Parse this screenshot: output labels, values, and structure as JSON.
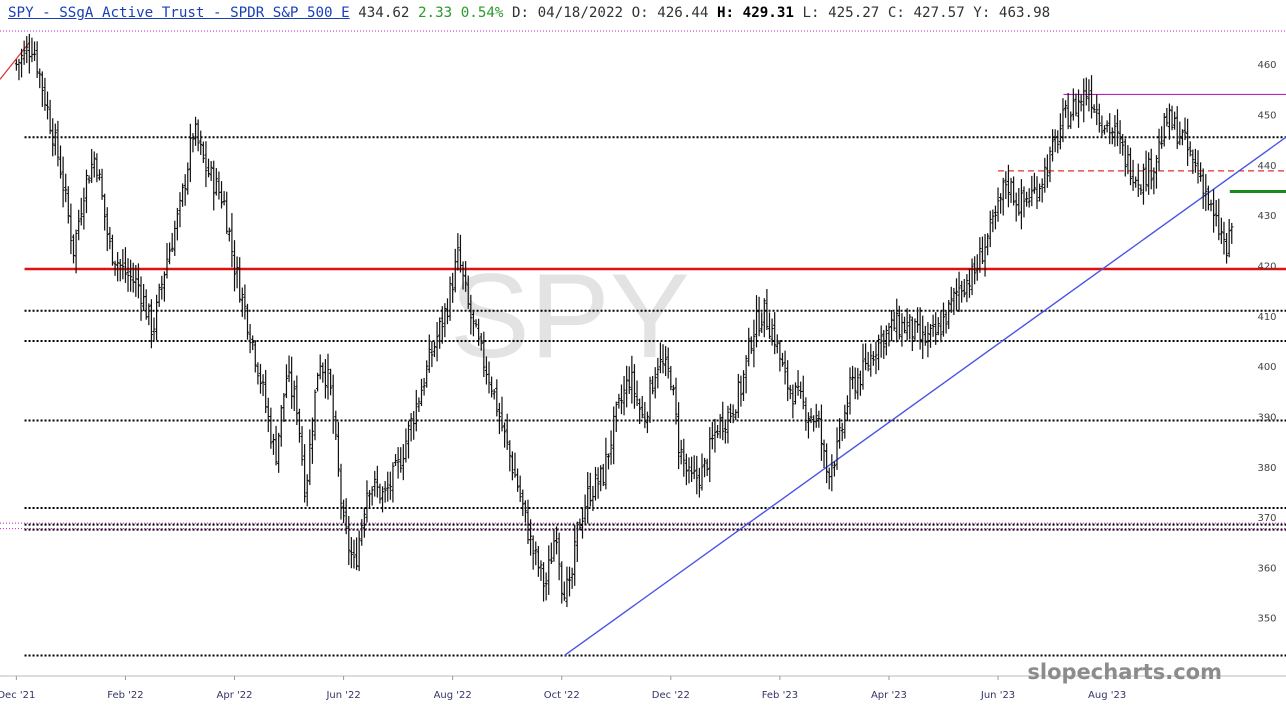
{
  "header": {
    "ticker_title": "SPY - SSgA Active Trust - SPDR S&P 500 E",
    "last": "434.62",
    "change": "2.33",
    "change_pct": "0.54%",
    "date_label": "D: 04/18/2022",
    "open_label": "O: 426.44",
    "high_label": "H:",
    "high_value": "429.31",
    "low_label": "L: 425.27",
    "close_label": "C: 427.57",
    "y_label": "Y: 463.98"
  },
  "watermark_symbol": "SPY",
  "site_credit": "slopecharts.com",
  "chart_data": {
    "type": "ohlc-bar",
    "ylim": [
      342,
      467
    ],
    "y_ticks": [
      "460",
      "450",
      "440",
      "430",
      "420",
      "410",
      "400",
      "390",
      "380",
      "370",
      "360",
      "350"
    ],
    "x_tick_labels": [
      "Dec '21",
      "Feb '22",
      "Apr '22",
      "Jun '22",
      "Aug '22",
      "Oct '22",
      "Dec '22",
      "Feb '23",
      "Apr '23",
      "Jun '23",
      "Aug '23"
    ],
    "x_tick_months": [
      0,
      2,
      4,
      6,
      8,
      10,
      12,
      14,
      16,
      18,
      20
    ],
    "x_range_months": [
      -0.3,
      22.4
    ],
    "price_path": [
      [
        0.0,
        460
      ],
      [
        0.3,
        464
      ],
      [
        0.55,
        452
      ],
      [
        0.8,
        440
      ],
      [
        1.05,
        423
      ],
      [
        1.25,
        436
      ],
      [
        1.45,
        442
      ],
      [
        1.7,
        424
      ],
      [
        1.95,
        419
      ],
      [
        2.25,
        416
      ],
      [
        2.5,
        407
      ],
      [
        2.75,
        421
      ],
      [
        3.0,
        431
      ],
      [
        3.25,
        447
      ],
      [
        3.45,
        440
      ],
      [
        3.8,
        433
      ],
      [
        4.0,
        420
      ],
      [
        4.2,
        411
      ],
      [
        4.45,
        399
      ],
      [
        4.75,
        382
      ],
      [
        4.95,
        398
      ],
      [
        5.15,
        392
      ],
      [
        5.3,
        375
      ],
      [
        5.55,
        402
      ],
      [
        5.75,
        396
      ],
      [
        6.0,
        368
      ],
      [
        6.2,
        360
      ],
      [
        6.45,
        377
      ],
      [
        6.75,
        374
      ],
      [
        7.0,
        380
      ],
      [
        7.3,
        391
      ],
      [
        7.6,
        402
      ],
      [
        7.9,
        412
      ],
      [
        8.1,
        422
      ],
      [
        8.3,
        411
      ],
      [
        8.5,
        403
      ],
      [
        8.7,
        397
      ],
      [
        8.95,
        386
      ],
      [
        9.2,
        376
      ],
      [
        9.45,
        364
      ],
      [
        9.7,
        356
      ],
      [
        9.9,
        368
      ],
      [
        10.0,
        357
      ],
      [
        10.15,
        355
      ],
      [
        10.3,
        368
      ],
      [
        10.5,
        375
      ],
      [
        10.75,
        378
      ],
      [
        11.0,
        390
      ],
      [
        11.25,
        398
      ],
      [
        11.5,
        389
      ],
      [
        11.75,
        401
      ],
      [
        12.0,
        398
      ],
      [
        12.15,
        384
      ],
      [
        12.35,
        377
      ],
      [
        12.6,
        379
      ],
      [
        12.85,
        388
      ],
      [
        13.1,
        391
      ],
      [
        13.3,
        396
      ],
      [
        13.5,
        407
      ],
      [
        13.7,
        411
      ],
      [
        13.9,
        406
      ],
      [
        14.1,
        397
      ],
      [
        14.3,
        394
      ],
      [
        14.5,
        391
      ],
      [
        14.7,
        389
      ],
      [
        14.85,
        379
      ],
      [
        15.05,
        383
      ],
      [
        15.3,
        396
      ],
      [
        15.55,
        399
      ],
      [
        15.8,
        405
      ],
      [
        16.1,
        408
      ],
      [
        16.35,
        408
      ],
      [
        16.6,
        405
      ],
      [
        16.85,
        406
      ],
      [
        17.1,
        411
      ],
      [
        17.3,
        416
      ],
      [
        17.55,
        418
      ],
      [
        17.75,
        424
      ],
      [
        17.95,
        429
      ],
      [
        18.15,
        437
      ],
      [
        18.4,
        432
      ],
      [
        18.7,
        435
      ],
      [
        18.95,
        441
      ],
      [
        19.2,
        449
      ],
      [
        19.45,
        452
      ],
      [
        19.65,
        455
      ],
      [
        19.9,
        449
      ],
      [
        20.15,
        446
      ],
      [
        20.35,
        441
      ],
      [
        20.6,
        437
      ],
      [
        20.85,
        440
      ],
      [
        21.1,
        449
      ],
      [
        21.35,
        446
      ],
      [
        21.55,
        441
      ],
      [
        21.75,
        437
      ],
      [
        21.95,
        429
      ],
      [
        22.1,
        426
      ],
      [
        22.2,
        422
      ],
      [
        22.3,
        429
      ]
    ],
    "horizontal_levels": [
      {
        "value": 445.5,
        "style": "dotted-black"
      },
      {
        "value": 419.3,
        "style": "solid-red"
      },
      {
        "value": 411.0,
        "style": "dotted-black"
      },
      {
        "value": 405.0,
        "style": "dotted-black"
      },
      {
        "value": 389.2,
        "style": "dotted-black"
      },
      {
        "value": 371.8,
        "style": "dotted-black"
      },
      {
        "value": 368.5,
        "style": "dotted-black"
      },
      {
        "value": 367.5,
        "style": "dotted-black"
      },
      {
        "value": 342.5,
        "style": "dotted-black"
      }
    ],
    "colors": {
      "bars": "#111111",
      "support_red": "#e01010",
      "trend_blue": "#4b55e6",
      "trend_red": "#e03030",
      "dashed_red": "#e03030",
      "magenta": "#c020c0",
      "green_marker": "#1a8a1a",
      "axis_text": "#444444",
      "x_label_text": "#333366",
      "watermark": "#e3e3e3"
    }
  }
}
